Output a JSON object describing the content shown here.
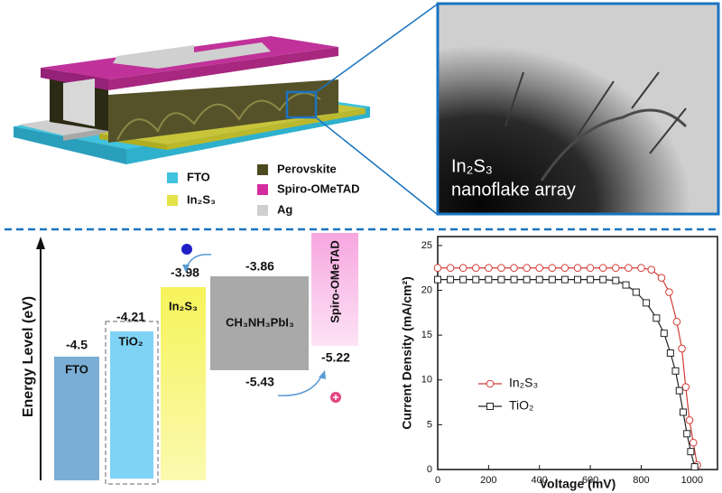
{
  "schematic": {
    "legend": [
      {
        "label": "FTO",
        "color": "#3fc3de"
      },
      {
        "label": "In₂S₃",
        "color": "#e3e34a"
      },
      {
        "label": "Perovskite",
        "color": "#4d4a22"
      },
      {
        "label": "Spiro-OMeTAD",
        "color": "#d42ca0"
      },
      {
        "label": "Ag",
        "color": "#cfcfcf"
      }
    ]
  },
  "tem": {
    "lines": [
      "In₂S₃",
      "nanoflake array"
    ]
  },
  "energy_diagram": {
    "axis_label": "Energy Level (eV)",
    "layers": [
      {
        "name": "FTO",
        "top": -4.5
      },
      {
        "name": "TiO₂",
        "top": -4.21
      },
      {
        "name": "In₂S₃",
        "top": -3.98
      },
      {
        "name": "CH₃NH₃PbI₃",
        "top": -3.86,
        "bottom": -5.43
      },
      {
        "name": "Spiro-OMeTAD",
        "bottom": -5.22
      }
    ]
  },
  "chart_data": {
    "type": "line",
    "xlabel": "Voltage (mV)",
    "ylabel": "Current Density (mA/cm²)",
    "xlim": [
      0,
      1100
    ],
    "ylim": [
      0,
      26
    ],
    "xticks": [
      0,
      200,
      400,
      600,
      800,
      1000
    ],
    "yticks": [
      0,
      5,
      10,
      15,
      20,
      25
    ],
    "legend": "lower left",
    "series": [
      {
        "name": "In₂S₃",
        "color": "#d23b35",
        "marker": "circle",
        "x": [
          0,
          50,
          100,
          150,
          200,
          250,
          300,
          350,
          400,
          450,
          500,
          550,
          600,
          650,
          700,
          750,
          800,
          840,
          880,
          910,
          940,
          960,
          975,
          990,
          1005,
          1020
        ],
        "values": [
          22.5,
          22.5,
          22.5,
          22.5,
          22.5,
          22.5,
          22.5,
          22.5,
          22.5,
          22.5,
          22.5,
          22.5,
          22.5,
          22.5,
          22.5,
          22.5,
          22.5,
          22.3,
          21.4,
          19.8,
          16.5,
          13.5,
          9.2,
          5.5,
          3.0,
          0.5
        ]
      },
      {
        "name": "TiO₂",
        "color": "#222222",
        "marker": "square",
        "x": [
          0,
          50,
          100,
          150,
          200,
          250,
          300,
          350,
          400,
          450,
          500,
          550,
          600,
          650,
          700,
          740,
          780,
          820,
          860,
          890,
          915,
          935,
          950,
          965,
          980,
          995,
          1010
        ],
        "values": [
          21.2,
          21.2,
          21.2,
          21.2,
          21.2,
          21.2,
          21.2,
          21.2,
          21.2,
          21.2,
          21.2,
          21.2,
          21.2,
          21.2,
          21.1,
          20.6,
          19.8,
          18.6,
          16.9,
          15.2,
          13.0,
          11.0,
          8.8,
          6.4,
          4.0,
          2.0,
          0.3
        ]
      }
    ]
  }
}
